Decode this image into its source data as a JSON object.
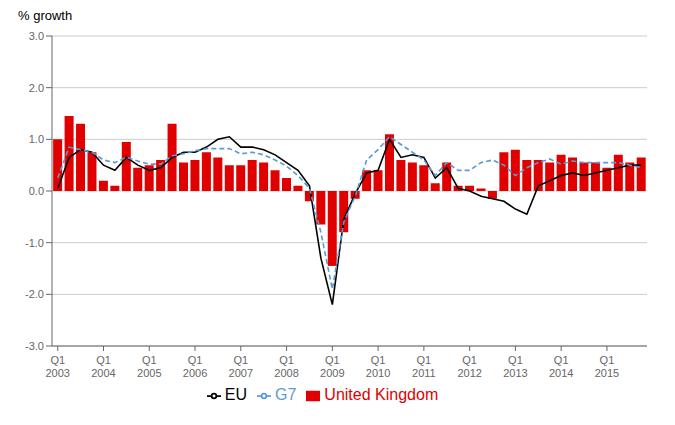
{
  "chart_data": {
    "type": "bar",
    "title": "% growth",
    "categories": [
      "Q1\n2003",
      null,
      null,
      null,
      "Q1\n2004",
      null,
      null,
      null,
      "Q1\n2005",
      null,
      null,
      null,
      "Q1\n2006",
      null,
      null,
      null,
      "Q1\n2007",
      null,
      null,
      null,
      "Q1\n2008",
      null,
      null,
      null,
      "Q1\n2009",
      null,
      null,
      null,
      "Q1\n2010",
      null,
      null,
      null,
      "Q1\n2011",
      null,
      null,
      null,
      "Q1\n2012",
      null,
      null,
      null,
      "Q1\n2013",
      null,
      null,
      null,
      "Q1\n2014",
      null,
      null,
      null,
      "Q1\n2015",
      null,
      null,
      null
    ],
    "series": [
      {
        "name": "United Kingdom",
        "type": "bar",
        "color": "#e00000",
        "values": [
          1.0,
          1.45,
          1.3,
          0.75,
          0.2,
          0.1,
          0.95,
          0.45,
          0.5,
          0.6,
          1.3,
          0.55,
          0.6,
          0.75,
          0.65,
          0.5,
          0.5,
          0.6,
          0.55,
          0.4,
          0.25,
          0.1,
          -0.2,
          -0.65,
          -1.45,
          -0.8,
          -0.15,
          0.4,
          0.4,
          1.1,
          0.6,
          0.55,
          0.5,
          0.15,
          0.55,
          0.1,
          0.1,
          0.05,
          -0.15,
          0.75,
          0.8,
          0.6,
          0.6,
          0.55,
          0.7,
          0.65,
          0.55,
          0.55,
          0.45,
          0.7,
          0.55,
          0.65
        ]
      },
      {
        "name": "EU",
        "type": "line",
        "color": "#000000",
        "line_style": "solid",
        "values": [
          0.05,
          0.65,
          0.8,
          0.75,
          0.5,
          0.4,
          0.65,
          0.5,
          0.4,
          0.45,
          0.65,
          0.75,
          0.75,
          0.85,
          1.0,
          1.05,
          0.85,
          0.85,
          0.8,
          0.7,
          0.55,
          0.4,
          0.1,
          -1.3,
          -2.2,
          -0.55,
          -0.05,
          0.35,
          0.4,
          1.0,
          0.65,
          0.7,
          0.65,
          0.25,
          0.45,
          0.05,
          0.0,
          -0.1,
          -0.15,
          -0.2,
          -0.35,
          -0.45,
          0.1,
          0.2,
          0.3,
          0.35,
          0.3,
          0.35,
          0.4,
          0.45,
          0.5,
          0.5
        ]
      },
      {
        "name": "G7",
        "type": "line",
        "color": "#5b9bd5",
        "line_style": "dashed",
        "values": [
          0.25,
          0.85,
          0.8,
          0.75,
          0.6,
          0.55,
          0.65,
          0.58,
          0.52,
          0.52,
          0.68,
          0.72,
          0.78,
          0.82,
          0.82,
          0.82,
          0.72,
          0.75,
          0.7,
          0.6,
          0.48,
          0.3,
          0.05,
          -0.8,
          -1.9,
          -0.6,
          -0.1,
          0.6,
          0.8,
          1.05,
          0.9,
          0.75,
          0.6,
          0.3,
          0.55,
          0.4,
          0.4,
          0.55,
          0.6,
          0.5,
          0.3,
          0.45,
          0.55,
          0.62,
          0.52,
          0.58,
          0.55,
          0.55,
          0.55,
          0.55,
          0.5,
          0.45
        ]
      }
    ],
    "ylim": [
      -3.0,
      3.0
    ],
    "yticks": [
      {
        "value": -3.0,
        "label": "-3.0"
      },
      {
        "value": -2.0,
        "label": "-2.0"
      },
      {
        "value": -1.0,
        "label": "-1.0"
      },
      {
        "value": 0.0,
        "label": "0.0"
      },
      {
        "value": 1.0,
        "label": "1.0"
      },
      {
        "value": 2.0,
        "label": "2.0"
      },
      {
        "value": 3.0,
        "label": "3.0"
      }
    ],
    "grid": true,
    "legend": "bottom"
  }
}
